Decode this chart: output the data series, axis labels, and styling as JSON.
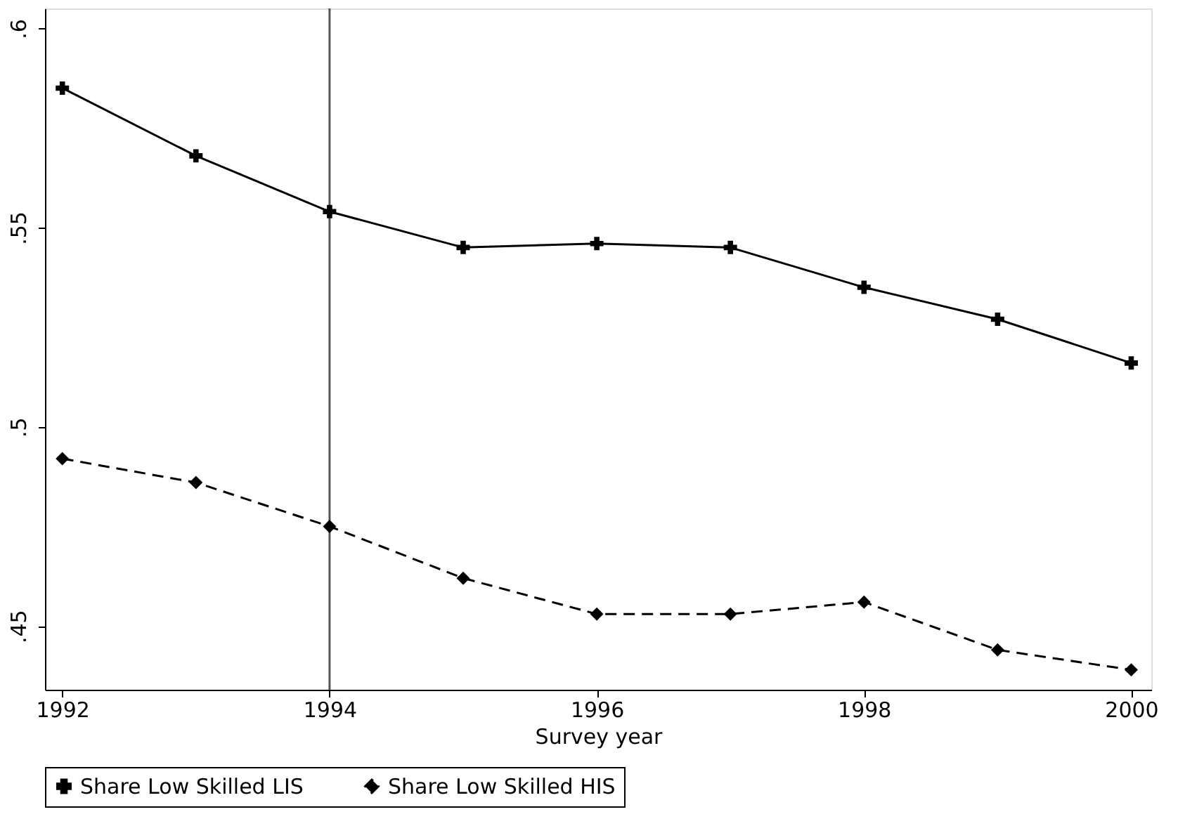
{
  "chart_data": {
    "type": "line",
    "xlabel": "Survey year",
    "x": [
      1992,
      1993,
      1994,
      1995,
      1996,
      1997,
      1998,
      1999,
      2000
    ],
    "series": [
      {
        "name": "Share Low Skilled LIS",
        "color": "#000000",
        "marker": "cross",
        "line_style": "solid",
        "values": [
          0.585,
          0.568,
          0.554,
          0.545,
          0.546,
          0.545,
          0.535,
          0.527,
          0.516
        ]
      },
      {
        "name": "Share Low Skilled HIS",
        "color": "#000000",
        "marker": "diamond",
        "line_style": "dashed",
        "values": [
          0.492,
          0.486,
          0.475,
          0.462,
          0.453,
          0.453,
          0.456,
          0.444,
          0.439
        ]
      }
    ],
    "xlim": [
      1991.87,
      2000.15
    ],
    "xticks": [
      1992,
      1994,
      1996,
      1998,
      2000
    ],
    "ylim": [
      0.434,
      0.605
    ],
    "yticks": [
      {
        "value": 0.45,
        "label": ".45"
      },
      {
        "value": 0.5,
        "label": ".5"
      },
      {
        "value": 0.55,
        "label": ".55"
      },
      {
        "value": 0.6,
        "label": ".6"
      }
    ],
    "ref_lines": [
      {
        "axis": "x",
        "value": 1994,
        "color": "#555555"
      }
    ],
    "grid": false,
    "legend": "bottom"
  }
}
